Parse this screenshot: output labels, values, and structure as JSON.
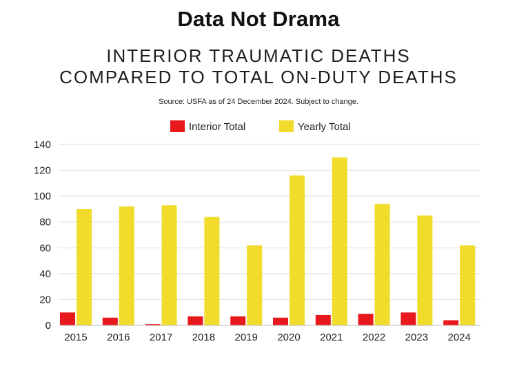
{
  "brand": "Data Not Drama",
  "headline": {
    "line1": "INTERIOR TRAUMATIC DEATHS",
    "line2": "COMPARED TO TOTAL ON-DUTY DEATHS"
  },
  "source": "Source: USFA as of 24 December 2024. Subject to change.",
  "colors": {
    "interior": "#e8191c",
    "yearly": "#f1dc2c",
    "grid": "#dddddd",
    "axis": "#bbbbbb"
  },
  "chart_data": {
    "type": "bar",
    "categories": [
      "2015",
      "2016",
      "2017",
      "2018",
      "2019",
      "2020",
      "2021",
      "2022",
      "2023",
      "2024"
    ],
    "series": [
      {
        "name": "Interior Total",
        "values": [
          10,
          6,
          1,
          7,
          7,
          6,
          8,
          9,
          10,
          4
        ]
      },
      {
        "name": "Yearly Total",
        "values": [
          90,
          92,
          93,
          84,
          62,
          116,
          130,
          94,
          85,
          62
        ]
      }
    ],
    "ylim": [
      0,
      140
    ],
    "yticks": [
      "0",
      "20",
      "40",
      "60",
      "80",
      "100",
      "120",
      "140"
    ],
    "grid": true,
    "legend": "top-center"
  }
}
